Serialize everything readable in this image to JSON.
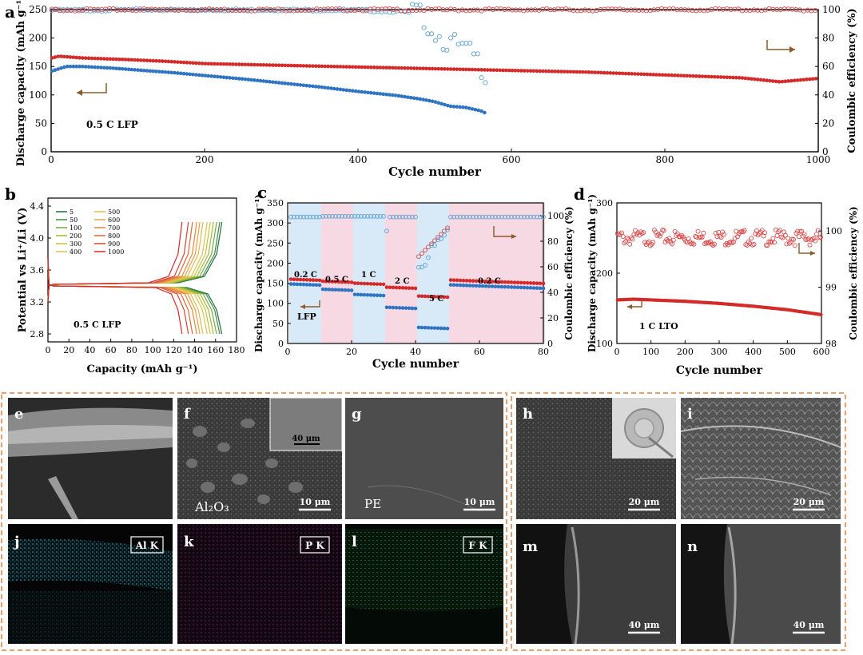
{
  "panel_letters": [
    "a",
    "b",
    "c",
    "d",
    "e",
    "f",
    "g",
    "h",
    "i",
    "j",
    "k",
    "l",
    "m",
    "n"
  ],
  "colors": {
    "blue": "#2f74c2",
    "red": "#d42a2a",
    "red_open": "#d94848",
    "blue_open": "#5aa0d8",
    "pink_bg": "#f7d9e3",
    "blue_bg": "#d8eaf7",
    "frame": "#e8a070"
  },
  "chart_data": [
    {
      "id": "a",
      "type": "scatter",
      "xlabel": "Cycle number",
      "ylabel": "Discharge capacity (mAh g⁻¹)",
      "y2label": "Coulombic efficiency (%)",
      "xlim": [
        0,
        1000
      ],
      "ylim": [
        0,
        250
      ],
      "y2lim": [
        0,
        100
      ],
      "xticks": [
        "0",
        "200",
        "400",
        "600",
        "800",
        "1000"
      ],
      "yticks": [
        "0",
        "50",
        "100",
        "150",
        "200",
        "250"
      ],
      "y2ticks": [
        "0",
        "20",
        "40",
        "60",
        "80",
        "100"
      ],
      "annotation": "0.5 C LFP",
      "series": [
        {
          "color": "blue",
          "axis": "left",
          "x": [
            1,
            20,
            40,
            80,
            120,
            160,
            200,
            250,
            300,
            350,
            400,
            450,
            480,
            500,
            520,
            540,
            560,
            568
          ],
          "y": [
            142,
            150,
            150,
            147,
            143,
            139,
            134,
            128,
            121,
            114,
            106,
            99,
            93,
            88,
            80,
            78,
            72,
            67
          ]
        },
        {
          "color": "red",
          "axis": "left",
          "x": [
            1,
            10,
            40,
            100,
            150,
            200,
            300,
            400,
            500,
            600,
            700,
            800,
            900,
            950,
            1000
          ],
          "y": [
            165,
            168,
            165,
            162,
            159,
            155,
            152,
            149,
            146,
            143,
            140,
            135,
            130,
            123,
            129
          ]
        },
        {
          "color": "blue",
          "axis": "right",
          "open": true,
          "x": [
            1,
            100,
            200,
            300,
            400,
            430,
            460,
            470,
            480,
            490,
            500,
            510,
            520,
            530,
            540,
            550,
            560,
            570
          ],
          "y": [
            99.5,
            99.8,
            99.8,
            99.8,
            99.6,
            99.0,
            98.5,
            97,
            96,
            92,
            85,
            80,
            77,
            73,
            70,
            68,
            60,
            55
          ]
        },
        {
          "color": "red",
          "axis": "right",
          "open": true,
          "x": [
            1,
            100,
            200,
            300,
            400,
            500,
            600,
            700,
            800,
            900,
            1000
          ],
          "y": [
            99.8,
            99.9,
            99.9,
            99.8,
            99.9,
            99.8,
            99.9,
            99.8,
            99.9,
            99.9,
            99.7
          ]
        }
      ]
    },
    {
      "id": "b",
      "type": "line",
      "xlabel": "Capacity (mAh g⁻¹)",
      "ylabel": "Potential vs Li⁺/Li (V)",
      "xlim": [
        0,
        180
      ],
      "ylim": [
        2.7,
        4.5
      ],
      "xticks": [
        "0",
        "20",
        "40",
        "60",
        "80",
        "100",
        "120",
        "140",
        "160",
        "180"
      ],
      "yticks": [
        "2.8",
        "3.2",
        "3.6",
        "4.0",
        "4.4"
      ],
      "annotation": "0.5 C LFP",
      "legend": [
        "5",
        "50",
        "100",
        "200",
        "300",
        "400",
        "500",
        "600",
        "700",
        "800",
        "900",
        "1000"
      ],
      "capacities": [
        166,
        164,
        161,
        158,
        155,
        152,
        148,
        145,
        142,
        138,
        134,
        128
      ]
    },
    {
      "id": "c",
      "type": "scatter",
      "xlabel": "Cycle number",
      "ylabel": "Discharge capacity (mAh g⁻¹)",
      "y2label": "Coulombic efficiency (%)",
      "xlim": [
        0,
        80
      ],
      "ylim": [
        0,
        350
      ],
      "y2lim": [
        0,
        110
      ],
      "xticks": [
        "0",
        "20",
        "40",
        "60",
        "80"
      ],
      "yticks": [
        "0",
        "50",
        "100",
        "150",
        "200",
        "250",
        "300",
        "350"
      ],
      "y2ticks": [
        "0",
        "20",
        "40",
        "60",
        "80",
        "100"
      ],
      "annotation": "LFP",
      "rate_labels": [
        "0.2 C",
        "0.5 C",
        "1 C",
        "2 C",
        "5 C",
        "0.2 C"
      ],
      "segments": [
        [
          1,
          10
        ],
        [
          11,
          20
        ],
        [
          21,
          30
        ],
        [
          31,
          40
        ],
        [
          41,
          50
        ],
        [
          51,
          80
        ]
      ],
      "discharge_red": [
        160,
        155,
        150,
        140,
        118,
        158
      ],
      "discharge_blue": [
        148,
        135,
        122,
        90,
        40,
        146
      ],
      "ce": [
        99,
        99.5,
        99.5,
        99,
        60,
        99
      ]
    },
    {
      "id": "d",
      "type": "scatter",
      "xlabel": "Cycle number",
      "ylabel": "Discharge capacity (mAh g⁻¹)",
      "y2label": "Coulombic efficiency (%)",
      "xlim": [
        0,
        600
      ],
      "ylim": [
        100,
        300
      ],
      "y2lim": [
        98,
        100.5
      ],
      "xticks": [
        "0",
        "100",
        "200",
        "300",
        "400",
        "500",
        "600"
      ],
      "yticks": [
        "100",
        "200",
        "300"
      ],
      "y2ticks": [
        "98",
        "99",
        "100"
      ],
      "annotation": "1 C LTO",
      "discharge": {
        "x": [
          1,
          50,
          100,
          200,
          300,
          400,
          500,
          600
        ],
        "y": [
          162,
          163,
          162,
          160,
          157,
          153,
          148,
          141
        ]
      },
      "ce_level": 99.95
    }
  ],
  "micrographs": {
    "f_inset_scale": "40 μm",
    "f_scale": "10 μm",
    "f_label": "Al₂O₃",
    "g_scale": "10 μm",
    "g_label": "PE",
    "h_scale": "20 μm",
    "i_scale": "20 μm",
    "j_label": "Al K",
    "k_label": "P K",
    "l_label": "F K",
    "m_scale": "40 μm",
    "n_scale": "40 μm"
  }
}
